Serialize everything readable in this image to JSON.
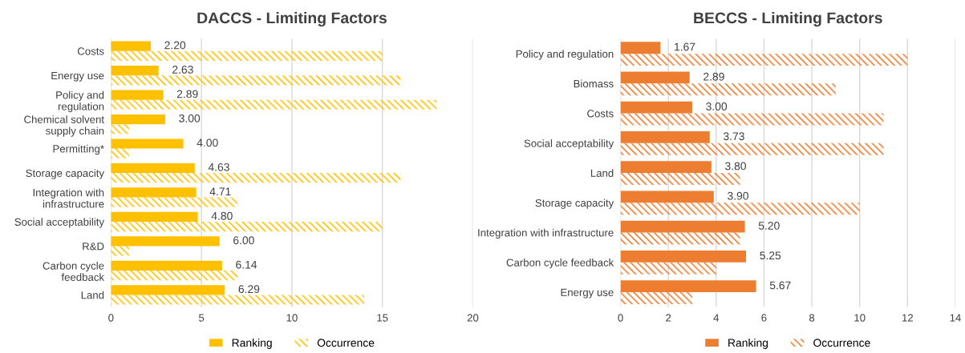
{
  "chart_data": [
    {
      "type": "bar",
      "orientation": "horizontal",
      "title": "DACCS - Limiting Factors",
      "categories": [
        "Costs",
        "Energy use",
        "Policy and\nregulation",
        "Chemical solvent\nsupply chain",
        "Permitting*",
        "Storage capacity",
        "Integration with\ninfrastructure",
        "Social acceptability",
        "R&D",
        "Carbon cycle\nfeedback",
        "Land"
      ],
      "series": [
        {
          "name": "Ranking",
          "color": "#ffc000",
          "values": [
            2.2,
            2.63,
            2.89,
            3.0,
            4.0,
            4.63,
            4.71,
            4.8,
            6.0,
            6.14,
            6.29
          ],
          "value_labels": [
            "2.20",
            "2.63",
            "2.89",
            "3.00",
            "4.00",
            "4.63",
            "4.71",
            "4.80",
            "6.00",
            "6.14",
            "6.29"
          ]
        },
        {
          "name": "Occurrence",
          "color": "#ffc000",
          "values": [
            15,
            16,
            18,
            1,
            1,
            16,
            7,
            15,
            1,
            7,
            14
          ]
        }
      ],
      "xlim": [
        0,
        20
      ],
      "xticks": [
        0,
        5,
        10,
        15,
        20
      ],
      "grid": "x",
      "legend": "bottom"
    },
    {
      "type": "bar",
      "orientation": "horizontal",
      "title": "BECCS - Limiting Factors",
      "categories": [
        "Policy and regulation",
        "Biomass",
        "Costs",
        "Social acceptability",
        "Land",
        "Storage capacity",
        "Integration with infrastructure",
        "Carbon cycle feedback",
        "Energy use"
      ],
      "series": [
        {
          "name": "Ranking",
          "color": "#ed7d31",
          "values": [
            1.67,
            2.89,
            3.0,
            3.73,
            3.8,
            3.9,
            5.2,
            5.25,
            5.67
          ],
          "value_labels": [
            "1.67",
            "2.89",
            "3.00",
            "3.73",
            "3.80",
            "3.90",
            "5.20",
            "5.25",
            "5.67"
          ]
        },
        {
          "name": "Occurrence",
          "color": "#ed7d31",
          "values": [
            12,
            9,
            11,
            11,
            5,
            10,
            5,
            4,
            3
          ]
        }
      ],
      "xlim": [
        0,
        14
      ],
      "xticks": [
        0,
        2,
        4,
        6,
        8,
        10,
        12,
        14
      ],
      "grid": "x",
      "legend": "bottom"
    }
  ]
}
